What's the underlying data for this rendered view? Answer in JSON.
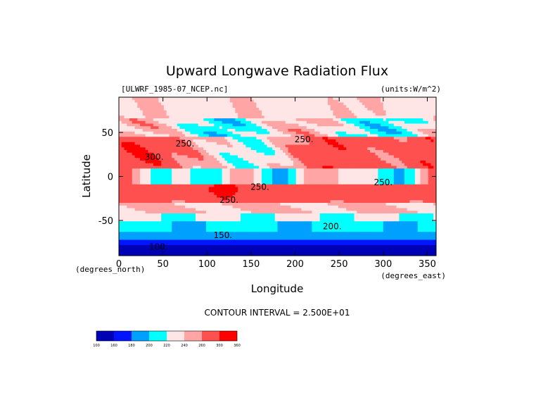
{
  "chart_data": {
    "type": "heatmap",
    "title": "Upward Longwave Radiation Flux",
    "source_label": "[ULWRF_1985-07_NCEP.nc]",
    "units_label": "(units:W/m^2)",
    "xlabel": "Longitude",
    "ylabel": "Latitude",
    "x_unit_label": "(degrees_east)",
    "y_unit_label": "(degrees_north)",
    "xlim": [
      0,
      360
    ],
    "ylim": [
      -90,
      90
    ],
    "x_ticks": [
      0,
      50,
      100,
      150,
      200,
      250,
      300,
      350
    ],
    "y_ticks": [
      50,
      0,
      -50
    ],
    "contour_interval_text": "CONTOUR INTERVAL = 2.500E+01",
    "colorbar": {
      "levels": [
        "100",
        "160",
        "180",
        "200",
        "220",
        "240",
        "260",
        "300",
        "360"
      ],
      "colors": [
        "#0000b4",
        "#0014ff",
        "#00a0ff",
        "#00ffff",
        "#ffe6e6",
        "#ffa5a5",
        "#ff5050",
        "#ff0000"
      ]
    },
    "contour_labels": [
      {
        "text": "250.",
        "lon": 210,
        "lat": 39
      },
      {
        "text": "250.",
        "lon": 75,
        "lat": 34
      },
      {
        "text": "300.",
        "lon": 40,
        "lat": 19
      },
      {
        "text": "250.",
        "lon": 160,
        "lat": -15
      },
      {
        "text": "250.",
        "lon": 300,
        "lat": -10
      },
      {
        "text": "250.",
        "lon": 125,
        "lat": -30
      },
      {
        "text": "200.",
        "lon": 242,
        "lat": -60
      },
      {
        "text": "150.",
        "lon": 118,
        "lat": -70
      },
      {
        "text": "100.",
        "lon": 45,
        "lat": -83
      }
    ]
  }
}
